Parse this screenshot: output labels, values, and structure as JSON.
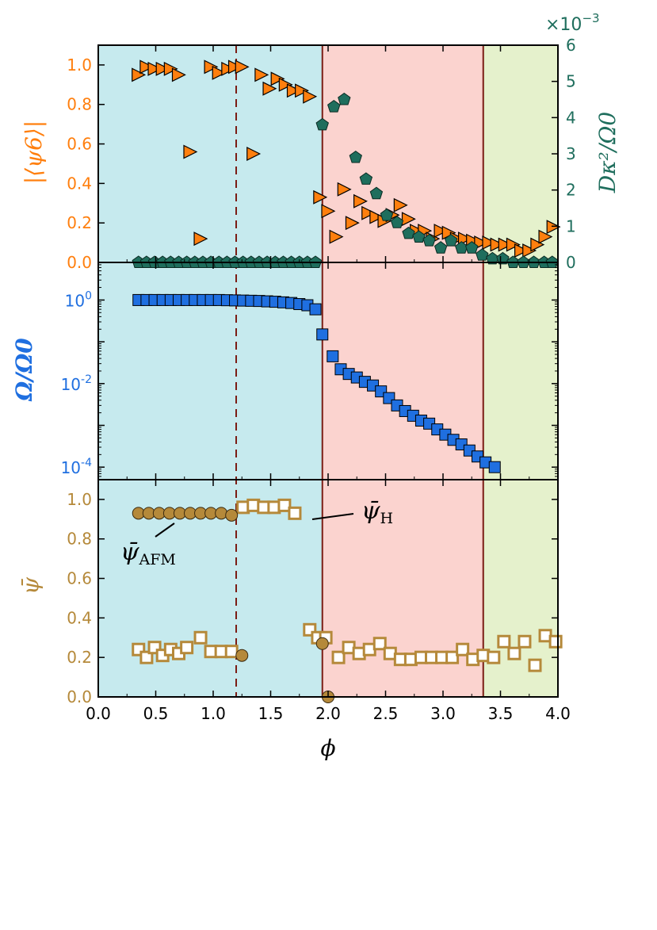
{
  "chart_data": {
    "type": "scatter",
    "x_axis": {
      "label": "ϕ",
      "range": [
        0.0,
        4.0
      ],
      "ticks": [
        "0.0",
        "0.5",
        "1.0",
        "1.5",
        "2.0",
        "2.5",
        "3.0",
        "3.5",
        "4.0"
      ]
    },
    "regions": [
      {
        "name": "region-1",
        "from": 0.0,
        "to": 1.95,
        "color": "#c6eaee"
      },
      {
        "name": "region-2",
        "from": 1.95,
        "to": 3.35,
        "color": "#fbd3cf"
      },
      {
        "name": "region-3",
        "from": 3.35,
        "to": 4.0,
        "color": "#e5f1cc"
      }
    ],
    "boundaries": [
      1.95,
      3.35
    ],
    "dashed_line": 1.2,
    "colors": {
      "orange": "#ff7f0e",
      "teal": "#1f6e5d",
      "blue": "#1f6fe0",
      "gold": "#b5893a",
      "boundary": "#7b1c14"
    },
    "panels": [
      {
        "id": "top",
        "ylabel": "|⟨ψ6⟩|",
        "ylim": [
          0.0,
          1.1
        ],
        "yticks": [
          "0.0",
          "0.2",
          "0.4",
          "0.6",
          "0.8",
          "1.0"
        ],
        "right_axis": {
          "label": "Dκ²/Ω0",
          "range": [
            0,
            6
          ],
          "ticks": [
            "0",
            "1",
            "2",
            "3",
            "4",
            "5",
            "6"
          ],
          "multiplier_base": "×10",
          "multiplier_exp": "−3"
        },
        "series": [
          {
            "name": "psi6",
            "axis": "left",
            "marker": "triangle-right",
            "x": [
              0.35,
              0.42,
              0.49,
              0.56,
              0.63,
              0.7,
              0.8,
              0.89,
              0.98,
              1.05,
              1.13,
              1.19,
              1.25,
              1.35,
              1.42,
              1.49,
              1.56,
              1.63,
              1.7,
              1.77,
              1.84,
              1.93,
              2.0,
              2.07,
              2.14,
              2.21,
              2.28,
              2.35,
              2.42,
              2.49,
              2.56,
              2.63,
              2.7,
              2.77,
              2.84,
              2.91,
              2.98,
              3.05,
              3.12,
              3.19,
              3.26,
              3.33,
              3.4,
              3.47,
              3.54,
              3.61,
              3.68,
              3.75,
              3.82,
              3.89,
              3.96
            ],
            "y": [
              0.95,
              0.99,
              0.98,
              0.98,
              0.98,
              0.95,
              0.56,
              0.12,
              0.99,
              0.96,
              0.98,
              0.99,
              0.99,
              0.55,
              0.95,
              0.88,
              0.93,
              0.9,
              0.87,
              0.87,
              0.84,
              0.33,
              0.26,
              0.13,
              0.37,
              0.2,
              0.31,
              0.25,
              0.23,
              0.21,
              0.24,
              0.29,
              0.22,
              0.16,
              0.16,
              0.12,
              0.16,
              0.15,
              0.12,
              0.12,
              0.11,
              0.1,
              0.1,
              0.09,
              0.09,
              0.09,
              0.06,
              0.06,
              0.09,
              0.13,
              0.18
            ]
          },
          {
            "name": "diffusion",
            "axis": "right",
            "marker": "pentagon",
            "x": [
              0.35,
              0.42,
              0.49,
              0.56,
              0.63,
              0.7,
              0.77,
              0.84,
              0.91,
              0.98,
              1.05,
              1.12,
              1.19,
              1.26,
              1.33,
              1.4,
              1.47,
              1.54,
              1.61,
              1.68,
              1.75,
              1.82,
              1.89,
              1.95,
              2.05,
              2.14,
              2.24,
              2.33,
              2.42,
              2.51,
              2.6,
              2.7,
              2.79,
              2.88,
              2.98,
              3.07,
              3.16,
              3.25,
              3.34,
              3.43,
              3.52,
              3.61,
              3.7,
              3.79,
              3.88,
              3.95
            ],
            "y": [
              0,
              0,
              0,
              0,
              0,
              0,
              0,
              0,
              0,
              0,
              0,
              0,
              0,
              0,
              0,
              0,
              0,
              0,
              0,
              0,
              0,
              0,
              0,
              3.8,
              4.3,
              4.5,
              2.9,
              2.3,
              1.9,
              1.3,
              1.1,
              0.8,
              0.7,
              0.6,
              0.4,
              0.6,
              0.4,
              0.4,
              0.2,
              0.1,
              0.1,
              0,
              0,
              0,
              0,
              0
            ]
          }
        ]
      },
      {
        "id": "middle",
        "ylabel": "Ω/Ω0",
        "scale": "log",
        "ylim_exp": [
          -4.3,
          0.9
        ],
        "yticks": [
          {
            "base": "10",
            "exp": "0"
          },
          {
            "base": "10",
            "exp": "-2"
          },
          {
            "base": "10",
            "exp": "-4"
          }
        ],
        "series": [
          {
            "name": "omega",
            "marker": "square",
            "x": [
              0.35,
              0.42,
              0.49,
              0.56,
              0.63,
              0.7,
              0.77,
              0.84,
              0.91,
              0.98,
              1.05,
              1.12,
              1.19,
              1.26,
              1.33,
              1.4,
              1.47,
              1.54,
              1.61,
              1.68,
              1.75,
              1.82,
              1.89,
              1.95,
              2.04,
              2.11,
              2.18,
              2.25,
              2.32,
              2.39,
              2.46,
              2.53,
              2.6,
              2.67,
              2.74,
              2.81,
              2.88,
              2.95,
              3.02,
              3.09,
              3.16,
              3.23,
              3.3,
              3.37,
              3.45
            ],
            "y": [
              1.0,
              1.0,
              1.0,
              1.0,
              1.0,
              1.0,
              1.0,
              1.0,
              1.0,
              1.0,
              1.0,
              0.99,
              0.98,
              0.97,
              0.96,
              0.95,
              0.93,
              0.91,
              0.88,
              0.85,
              0.8,
              0.75,
              0.6,
              0.15,
              0.045,
              0.022,
              0.017,
              0.014,
              0.011,
              0.009,
              0.0065,
              0.0045,
              0.003,
              0.0022,
              0.0017,
              0.0013,
              0.0011,
              0.0008,
              0.0006,
              0.00045,
              0.00035,
              0.00025,
              0.00018,
              0.00013,
              0.0001
            ]
          }
        ]
      },
      {
        "id": "bottom",
        "ylabel": "ψ̄",
        "ylim": [
          0.0,
          1.1
        ],
        "yticks": [
          "0.0",
          "0.2",
          "0.4",
          "0.6",
          "0.8",
          "1.0"
        ],
        "annotations": [
          {
            "name": "psi-afm",
            "symbol": "ψ̄",
            "sub": "AFM"
          },
          {
            "name": "psi-h",
            "symbol": "ψ̄",
            "sub": "H"
          }
        ],
        "series": [
          {
            "name": "psi_AFM",
            "marker": "circle",
            "x": [
              0.35,
              0.44,
              0.53,
              0.62,
              0.71,
              0.8,
              0.89,
              0.98,
              1.07,
              1.16,
              1.25,
              1.95,
              2.0
            ],
            "y": [
              0.93,
              0.93,
              0.93,
              0.93,
              0.93,
              0.93,
              0.93,
              0.93,
              0.93,
              0.92,
              0.21,
              0.27,
              0.0
            ]
          },
          {
            "name": "psi_H",
            "marker": "open-square",
            "x": [
              0.35,
              0.42,
              0.49,
              0.56,
              0.63,
              0.7,
              0.77,
              0.89,
              0.98,
              1.07,
              1.16,
              1.26,
              1.35,
              1.44,
              1.53,
              1.62,
              1.71,
              1.84,
              1.91,
              1.98,
              2.09,
              2.18,
              2.27,
              2.36,
              2.45,
              2.54,
              2.63,
              2.72,
              2.81,
              2.9,
              2.99,
              3.08,
              3.17,
              3.26,
              3.35,
              3.44,
              3.53,
              3.62,
              3.71,
              3.8,
              3.89,
              3.98
            ],
            "y": [
              0.24,
              0.2,
              0.25,
              0.21,
              0.24,
              0.22,
              0.25,
              0.3,
              0.23,
              0.23,
              0.23,
              0.96,
              0.97,
              0.96,
              0.96,
              0.97,
              0.93,
              0.34,
              0.3,
              0.3,
              0.2,
              0.25,
              0.22,
              0.24,
              0.27,
              0.22,
              0.19,
              0.19,
              0.2,
              0.2,
              0.2,
              0.2,
              0.24,
              0.19,
              0.21,
              0.2,
              0.28,
              0.22,
              0.28,
              0.16,
              0.31,
              0.28
            ]
          }
        ]
      }
    ]
  }
}
